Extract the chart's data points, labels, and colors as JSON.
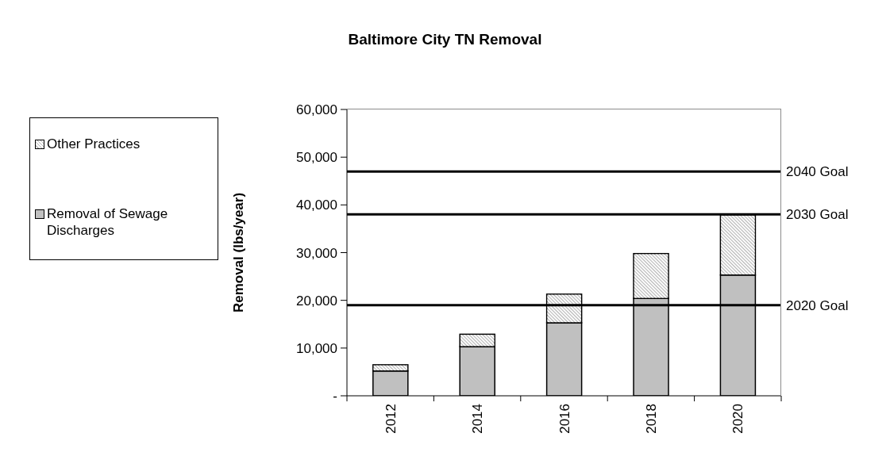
{
  "chart_data": {
    "type": "bar",
    "title": "Baltimore City TN Removal",
    "ylabel": "Removal (lbs/year)",
    "categories": [
      "2012",
      "2014",
      "2016",
      "2018",
      "2020"
    ],
    "stacked": true,
    "series": [
      {
        "name": "Removal of Sewage Discharges",
        "color": "#c0c0c0",
        "values": [
          5200,
          10300,
          15300,
          20400,
          25300
        ]
      },
      {
        "name": "Other Practices",
        "color": "#b4b4b4",
        "values": [
          1300,
          2600,
          6000,
          9400,
          12600
        ]
      }
    ],
    "ylim": [
      0,
      60000
    ],
    "yticks": [
      {
        "value": 0,
        "label": "-"
      },
      {
        "value": 10000,
        "label": "10,000"
      },
      {
        "value": 20000,
        "label": "20,000"
      },
      {
        "value": 30000,
        "label": "30,000"
      },
      {
        "value": 40000,
        "label": "40,000"
      },
      {
        "value": 50000,
        "label": "50,000"
      },
      {
        "value": 60000,
        "label": "60,000"
      }
    ],
    "ref_lines": [
      {
        "axis": "y",
        "value": 47000,
        "label": "2040 Goal",
        "color": "#000000"
      },
      {
        "axis": "y",
        "value": 38000,
        "label": "2030 Goal",
        "color": "#000000"
      },
      {
        "axis": "y",
        "value": 19000,
        "label": "2020 Goal",
        "color": "#000000"
      }
    ],
    "legend": "left",
    "grid": false
  }
}
